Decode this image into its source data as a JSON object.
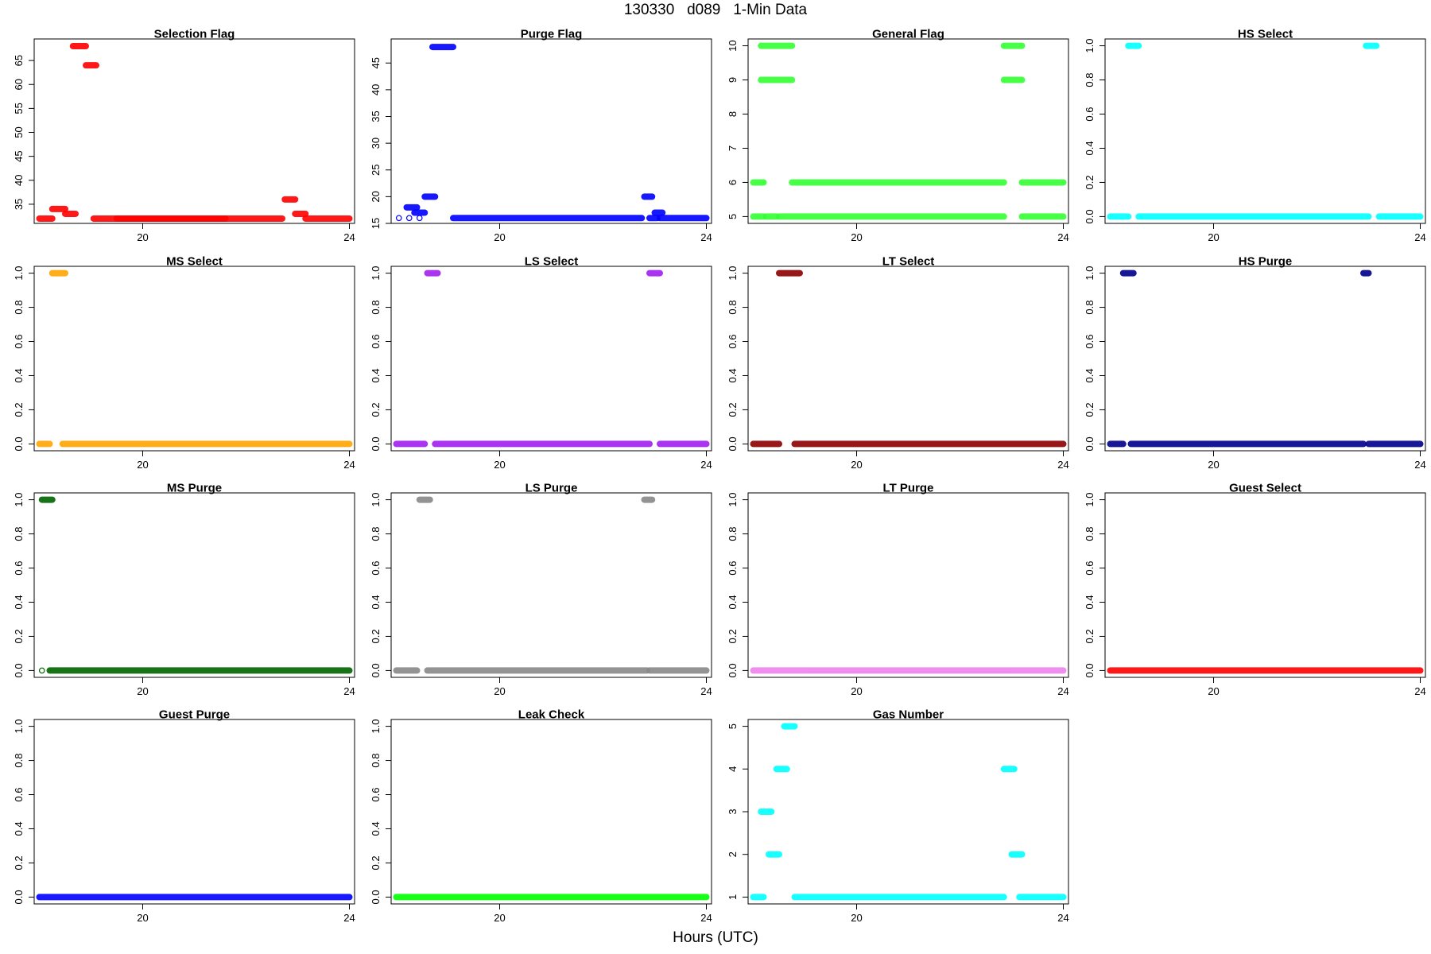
{
  "title": "130330   d089   1-Min Data",
  "xlabel": "Hours (UTC)",
  "chart_data": [
    {
      "type": "scatter",
      "title": "Selection Flag",
      "color": "#ff0000",
      "xlim": [
        17.9,
        24.1
      ],
      "ylim": [
        31,
        69.5
      ],
      "yticks": [
        35,
        40,
        45,
        50,
        55,
        60,
        65
      ],
      "segments": [
        [
          18.0,
          18.25,
          32
        ],
        [
          18.25,
          18.5,
          34
        ],
        [
          18.5,
          18.7,
          33
        ],
        [
          18.65,
          18.9,
          68
        ],
        [
          18.9,
          19.1,
          64
        ],
        [
          19.05,
          21.6,
          32
        ],
        [
          19.5,
          22.7,
          32
        ],
        [
          22.75,
          22.95,
          36
        ],
        [
          22.95,
          23.15,
          33
        ],
        [
          23.15,
          24.0,
          32
        ]
      ]
    },
    {
      "type": "scatter",
      "title": "Purge Flag",
      "color": "#0000ff",
      "xlim": [
        17.9,
        24.1
      ],
      "ylim": [
        15,
        49.5
      ],
      "yticks": [
        15,
        20,
        25,
        30,
        35,
        40,
        45
      ],
      "segments": [
        [
          18.2,
          18.4,
          18
        ],
        [
          18.35,
          18.55,
          17
        ],
        [
          18.55,
          18.75,
          20
        ],
        [
          18.7,
          19.1,
          48
        ],
        [
          19.1,
          22.75,
          16
        ],
        [
          22.8,
          22.95,
          20
        ],
        [
          22.9,
          23.05,
          16
        ],
        [
          23.0,
          23.15,
          17
        ],
        [
          23.1,
          24.0,
          16
        ]
      ],
      "open_points": [
        [
          18.05,
          16
        ],
        [
          18.25,
          16
        ],
        [
          18.45,
          16
        ]
      ]
    },
    {
      "type": "scatter",
      "title": "General Flag",
      "color": "#33ff33",
      "xlim": [
        17.9,
        24.1
      ],
      "ylim": [
        4.8,
        10.2
      ],
      "yticks": [
        5,
        6,
        7,
        8,
        9,
        10
      ],
      "segments": [
        [
          18.0,
          18.2,
          5
        ],
        [
          18.0,
          18.2,
          6
        ],
        [
          18.15,
          18.75,
          10
        ],
        [
          18.15,
          18.75,
          9
        ],
        [
          18.25,
          18.45,
          5
        ],
        [
          18.5,
          22.85,
          5
        ],
        [
          18.75,
          22.85,
          6
        ],
        [
          22.85,
          23.2,
          10
        ],
        [
          22.85,
          23.2,
          9
        ],
        [
          23.2,
          24.0,
          5
        ],
        [
          23.2,
          24.0,
          6
        ]
      ]
    },
    {
      "type": "scatter",
      "title": "HS Select",
      "color": "#00ffff",
      "xlim": [
        17.9,
        24.1
      ],
      "ylim": [
        -0.04,
        1.04
      ],
      "yticks": [
        0.0,
        0.2,
        0.4,
        0.6,
        0.8,
        1.0
      ],
      "segments": [
        [
          18.0,
          18.35,
          0
        ],
        [
          18.35,
          18.55,
          1
        ],
        [
          18.55,
          23.0,
          0
        ],
        [
          22.95,
          23.15,
          1
        ],
        [
          23.2,
          24.0,
          0
        ]
      ]
    },
    {
      "type": "scatter",
      "title": "MS Select",
      "color": "#ffa500",
      "xlim": [
        17.9,
        24.1
      ],
      "ylim": [
        -0.04,
        1.04
      ],
      "yticks": [
        0.0,
        0.2,
        0.4,
        0.6,
        0.8,
        1.0
      ],
      "segments": [
        [
          18.0,
          18.2,
          0
        ],
        [
          18.25,
          18.5,
          1
        ],
        [
          18.45,
          24.0,
          0
        ]
      ]
    },
    {
      "type": "scatter",
      "title": "LS Select",
      "color": "#a020f0",
      "xlim": [
        17.9,
        24.1
      ],
      "ylim": [
        -0.04,
        1.04
      ],
      "yticks": [
        0.0,
        0.2,
        0.4,
        0.6,
        0.8,
        1.0
      ],
      "segments": [
        [
          18.0,
          18.55,
          0
        ],
        [
          18.6,
          18.8,
          1
        ],
        [
          18.75,
          22.9,
          0
        ],
        [
          22.9,
          23.1,
          1
        ],
        [
          23.1,
          24.0,
          0
        ]
      ]
    },
    {
      "type": "scatter",
      "title": "LT Select",
      "color": "#8b0000",
      "xlim": [
        17.9,
        24.1
      ],
      "ylim": [
        -0.04,
        1.04
      ],
      "yticks": [
        0.0,
        0.2,
        0.4,
        0.6,
        0.8,
        1.0
      ],
      "segments": [
        [
          18.0,
          18.5,
          0
        ],
        [
          18.5,
          18.9,
          1
        ],
        [
          18.8,
          24.0,
          0
        ]
      ]
    },
    {
      "type": "scatter",
      "title": "HS Purge",
      "color": "#00008b",
      "xlim": [
        17.9,
        24.1
      ],
      "ylim": [
        -0.04,
        1.04
      ],
      "yticks": [
        0.0,
        0.2,
        0.4,
        0.6,
        0.8,
        1.0
      ],
      "segments": [
        [
          18.0,
          18.25,
          0
        ],
        [
          18.25,
          18.45,
          1
        ],
        [
          18.4,
          22.9,
          0
        ],
        [
          22.9,
          23.0,
          1
        ],
        [
          23.0,
          24.0,
          0
        ]
      ]
    },
    {
      "type": "scatter",
      "title": "MS Purge",
      "color": "#006400",
      "xlim": [
        17.9,
        24.1
      ],
      "ylim": [
        -0.04,
        1.04
      ],
      "yticks": [
        0.0,
        0.2,
        0.4,
        0.6,
        0.8,
        1.0
      ],
      "segments": [
        [
          18.05,
          18.25,
          1
        ],
        [
          18.2,
          24.0,
          0
        ]
      ],
      "open_points": [
        [
          18.05,
          0
        ]
      ]
    },
    {
      "type": "scatter",
      "title": "LS Purge",
      "color": "#888888",
      "xlim": [
        17.9,
        24.1
      ],
      "ylim": [
        -0.04,
        1.04
      ],
      "yticks": [
        0.0,
        0.2,
        0.4,
        0.6,
        0.8,
        1.0
      ],
      "segments": [
        [
          18.0,
          18.4,
          0
        ],
        [
          18.45,
          18.65,
          1
        ],
        [
          18.6,
          22.85,
          0
        ],
        [
          22.8,
          22.95,
          1
        ],
        [
          22.9,
          24.0,
          0
        ]
      ]
    },
    {
      "type": "scatter",
      "title": "LT Purge",
      "color": "#ee82ee",
      "xlim": [
        17.9,
        24.1
      ],
      "ylim": [
        -0.04,
        1.04
      ],
      "yticks": [
        0.0,
        0.2,
        0.4,
        0.6,
        0.8,
        1.0
      ],
      "segments": [
        [
          18.0,
          24.0,
          0
        ]
      ]
    },
    {
      "type": "scatter",
      "title": "Guest Select",
      "color": "#ff0000",
      "xlim": [
        17.9,
        24.1
      ],
      "ylim": [
        -0.04,
        1.04
      ],
      "yticks": [
        0.0,
        0.2,
        0.4,
        0.6,
        0.8,
        1.0
      ],
      "segments": [
        [
          18.0,
          24.0,
          0
        ]
      ]
    },
    {
      "type": "scatter",
      "title": "Guest Purge",
      "color": "#0000ff",
      "xlim": [
        17.9,
        24.1
      ],
      "ylim": [
        -0.04,
        1.04
      ],
      "yticks": [
        0.0,
        0.2,
        0.4,
        0.6,
        0.8,
        1.0
      ],
      "segments": [
        [
          18.0,
          24.0,
          0
        ]
      ]
    },
    {
      "type": "scatter",
      "title": "Leak Check",
      "color": "#00ff00",
      "xlim": [
        17.9,
        24.1
      ],
      "ylim": [
        -0.04,
        1.04
      ],
      "yticks": [
        0.0,
        0.2,
        0.4,
        0.6,
        0.8,
        1.0
      ],
      "segments": [
        [
          18.0,
          24.0,
          0
        ]
      ]
    },
    {
      "type": "scatter",
      "title": "Gas Number",
      "color": "#00ffff",
      "xlim": [
        17.9,
        24.1
      ],
      "ylim": [
        0.84,
        5.16
      ],
      "yticks": [
        1,
        2,
        3,
        4,
        5
      ],
      "segments": [
        [
          18.0,
          18.2,
          1
        ],
        [
          18.15,
          18.35,
          3
        ],
        [
          18.3,
          18.5,
          2
        ],
        [
          18.45,
          18.65,
          4
        ],
        [
          18.6,
          18.8,
          5
        ],
        [
          18.8,
          22.85,
          1
        ],
        [
          22.85,
          23.05,
          4
        ],
        [
          23.0,
          23.2,
          2
        ],
        [
          23.15,
          24.0,
          1
        ]
      ]
    }
  ],
  "xticks": [
    20,
    24
  ]
}
